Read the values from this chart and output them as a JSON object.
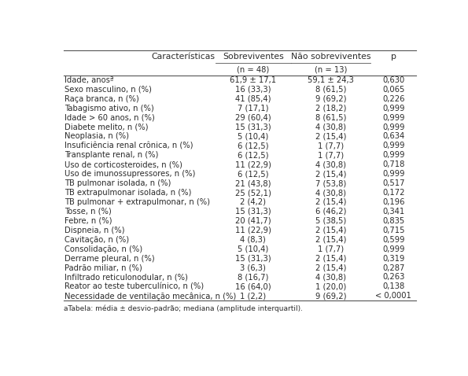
{
  "col_headers": [
    "Características",
    "Sobreviventes",
    "Não sobreviventes",
    "p"
  ],
  "sub_headers": [
    "",
    "(n = 48)",
    "(n = 13)",
    ""
  ],
  "rows": [
    [
      "Idade, anosª",
      "61,9 ± 17,1",
      "59,1 ± 24,3",
      "0,630"
    ],
    [
      "Sexo masculino, n (%)",
      "16 (33,3)",
      "8 (61,5)",
      "0,065"
    ],
    [
      "Raça branca, n (%)",
      "41 (85,4)",
      "9 (69,2)",
      "0,226"
    ],
    [
      "Tabagismo ativo, n (%)",
      "7 (17,1)",
      "2 (18,2)",
      "0,999"
    ],
    [
      "Idade > 60 anos, n (%)",
      "29 (60,4)",
      "8 (61,5)",
      "0,999"
    ],
    [
      "Diabete melito, n (%)",
      "15 (31,3)",
      "4 (30,8)",
      "0,999"
    ],
    [
      "Neoplasia, n (%)",
      "5 (10,4)",
      "2 (15,4)",
      "0,634"
    ],
    [
      "Insuficiência renal crônica, n (%)",
      "6 (12,5)",
      "1 (7,7)",
      "0,999"
    ],
    [
      "Transplante renal, n (%)",
      "6 (12,5)",
      "1 (7,7)",
      "0,999"
    ],
    [
      "Uso de corticosteroides, n (%)",
      "11 (22,9)",
      "4 (30,8)",
      "0,718"
    ],
    [
      "Uso de imunossupressores, n (%)",
      "6 (12,5)",
      "2 (15,4)",
      "0,999"
    ],
    [
      "TB pulmonar isolada, n (%)",
      "21 (43,8)",
      "7 (53,8)",
      "0,517"
    ],
    [
      "TB extrapulmonar isolada, n (%)",
      "25 (52,1)",
      "4 (30,8)",
      "0,172"
    ],
    [
      "TB pulmonar + extrapulmonar, n (%)",
      "2 (4,2)",
      "2 (15,4)",
      "0,196"
    ],
    [
      "Tosse, n (%)",
      "15 (31,3)",
      "6 (46,2)",
      "0,341"
    ],
    [
      "Febre, n (%)",
      "20 (41,7)",
      "5 (38,5)",
      "0,835"
    ],
    [
      "Dispneia, n (%)",
      "11 (22,9)",
      "2 (15,4)",
      "0,715"
    ],
    [
      "Cavitação, n (%)",
      "4 (8,3)",
      "2 (15,4)",
      "0,599"
    ],
    [
      "Consolidação, n (%)",
      "5 (10,4)",
      "1 (7,7)",
      "0,999"
    ],
    [
      "Derrame pleural, n (%)",
      "15 (31,3)",
      "2 (15,4)",
      "0,319"
    ],
    [
      "Padrão miliar, n (%)",
      "3 (6,3)",
      "2 (15,4)",
      "0,287"
    ],
    [
      "Infiltrado reticulonodular, n (%)",
      "8 (16,7)",
      "4 (30,8)",
      "0,263"
    ],
    [
      "Reator ao teste tuberculínico, n (%)",
      "16 (64,0)",
      "1 (20,0)",
      "0,138"
    ],
    [
      "Necessidade de ventilação mecânica, n (%)",
      "1 (2,2)",
      "9 (69,2)",
      "< 0,0001"
    ]
  ],
  "footnote": "aTabela: média ± desvio-padrão; mediana (amplitude interquartil).",
  "text_color": "#2b2b2b",
  "line_color": "#555555",
  "font_size": 7.2,
  "header_font_size": 7.8
}
